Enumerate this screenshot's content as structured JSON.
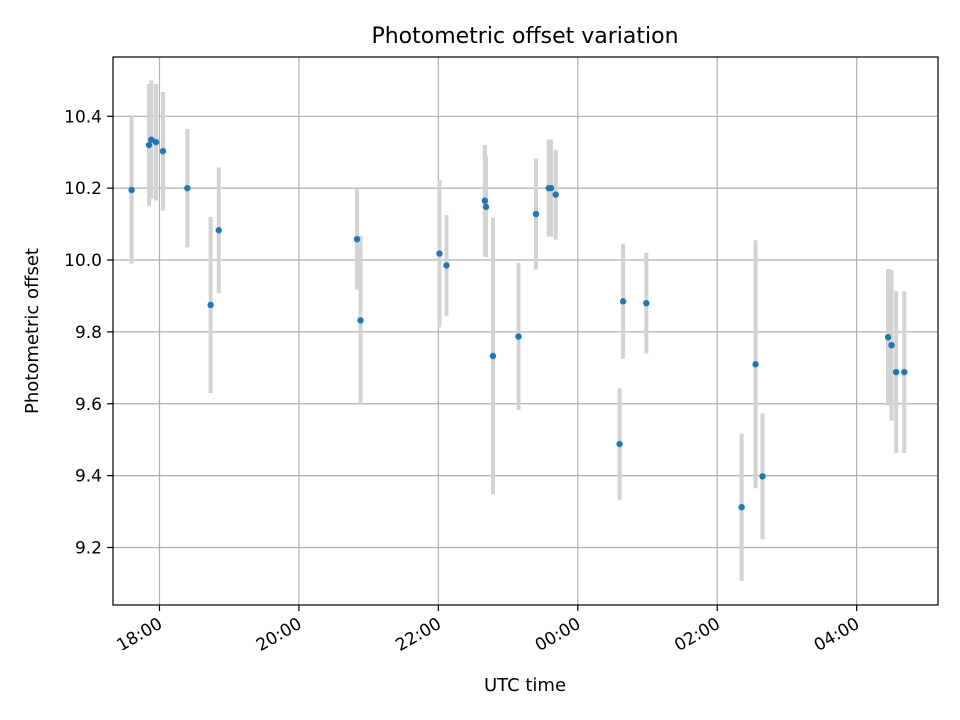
{
  "chart_data": {
    "type": "scatter",
    "title": "Photometric offset variation",
    "xlabel": "UTC time",
    "ylabel": "Photometric offset",
    "grid": true,
    "xlim": [
      "17:20",
      "05:10"
    ],
    "ylim": [
      9.04,
      10.565
    ],
    "x_ticks": [
      "18:00",
      "20:00",
      "22:00",
      "00:00",
      "02:00",
      "04:00"
    ],
    "y_ticks": [
      9.2,
      9.4,
      9.6,
      9.8,
      10.0,
      10.2,
      10.4
    ],
    "colors": {
      "points": "#1f77b4",
      "error_bars": "#d3d3d3",
      "grid": "#b0b0b0"
    },
    "points": [
      {
        "x": "17:36",
        "y": 10.195,
        "err": 0.205
      },
      {
        "x": "17:51",
        "y": 10.32,
        "err": 0.17
      },
      {
        "x": "17:53",
        "y": 10.335,
        "err": 0.165
      },
      {
        "x": "17:57",
        "y": 10.328,
        "err": 0.162
      },
      {
        "x": "18:03",
        "y": 10.303,
        "err": 0.165
      },
      {
        "x": "18:24",
        "y": 10.2,
        "err": 0.165
      },
      {
        "x": "18:44",
        "y": 9.875,
        "err": 0.245
      },
      {
        "x": "18:51",
        "y": 10.083,
        "err": 0.175
      },
      {
        "x": "20:50",
        "y": 10.058,
        "err": 0.14
      },
      {
        "x": "20:53",
        "y": 9.832,
        "err": 0.235
      },
      {
        "x": "22:01",
        "y": 10.018,
        "err": 0.205
      },
      {
        "x": "22:07",
        "y": 9.985,
        "err": 0.14
      },
      {
        "x": "22:40",
        "y": 10.165,
        "err": 0.155
      },
      {
        "x": "22:41",
        "y": 10.148,
        "err": 0.14
      },
      {
        "x": "22:47",
        "y": 9.733,
        "err": 0.385
      },
      {
        "x": "23:09",
        "y": 9.787,
        "err": 0.205
      },
      {
        "x": "23:24",
        "y": 10.128,
        "err": 0.155
      },
      {
        "x": "23:35",
        "y": 10.2,
        "err": 0.135
      },
      {
        "x": "23:37",
        "y": 10.2,
        "err": 0.135
      },
      {
        "x": "23:41",
        "y": 10.182,
        "err": 0.125
      },
      {
        "x": "00:36",
        "y": 9.488,
        "err": 0.155
      },
      {
        "x": "00:39",
        "y": 9.885,
        "err": 0.16
      },
      {
        "x": "00:59",
        "y": 9.88,
        "err": 0.14
      },
      {
        "x": "02:21",
        "y": 9.312,
        "err": 0.205
      },
      {
        "x": "02:33",
        "y": 9.71,
        "err": 0.345
      },
      {
        "x": "02:39",
        "y": 9.398,
        "err": 0.175
      },
      {
        "x": "04:27",
        "y": 9.785,
        "err": 0.19
      },
      {
        "x": "04:30",
        "y": 9.763,
        "err": 0.21
      },
      {
        "x": "04:34",
        "y": 9.688,
        "err": 0.225
      },
      {
        "x": "04:41",
        "y": 9.688,
        "err": 0.225
      }
    ]
  }
}
